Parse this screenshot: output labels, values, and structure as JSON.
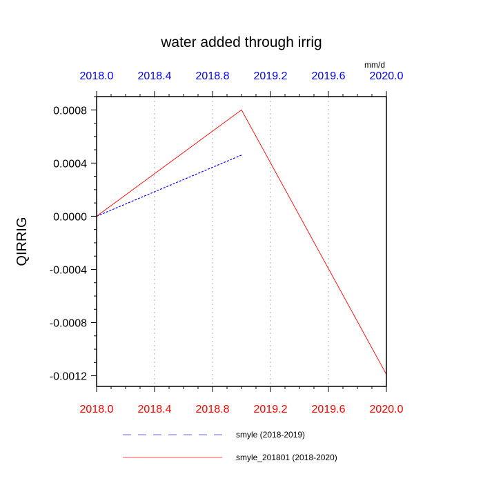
{
  "chart_data": {
    "type": "line",
    "title": "water added through irrig",
    "ylabel": "QIRRIG",
    "units": "mm/d",
    "xlim": [
      2018.0,
      2020.0
    ],
    "ylim": [
      -0.00128,
      0.0009
    ],
    "x_ticks": [
      2018.0,
      2018.4,
      2018.8,
      2019.2,
      2019.6,
      2020.0
    ],
    "x_tick_labels": [
      "2018.0",
      "2018.4",
      "2018.8",
      "2019.2",
      "2019.6",
      "2020.0"
    ],
    "y_ticks": [
      0.0008,
      0.0004,
      0.0,
      -0.0004,
      -0.0008,
      -0.0012
    ],
    "y_tick_labels": [
      "0.0008",
      "0.0004",
      "0.0000",
      "-0.0004",
      "-0.0008",
      "-0.0012"
    ],
    "grid": "vertical dotted",
    "legend_position": "bottom",
    "series": [
      {
        "name": "smyle (2018-2019)",
        "color": "#0000ff",
        "dash": "dashed",
        "x": [
          2018.0,
          2019.0
        ],
        "y": [
          0.0,
          0.00046
        ]
      },
      {
        "name": "smyle_201801 (2018-2020)",
        "color": "#ff0000",
        "dash": "solid",
        "x": [
          2018.0,
          2019.0,
          2020.0
        ],
        "y": [
          0.0,
          0.0008,
          -0.00119
        ]
      }
    ],
    "colors": {
      "bottom_tick_labels": "#ff0000",
      "top_tick_labels": "#0000ff",
      "grid": "#bbbbbb"
    }
  }
}
